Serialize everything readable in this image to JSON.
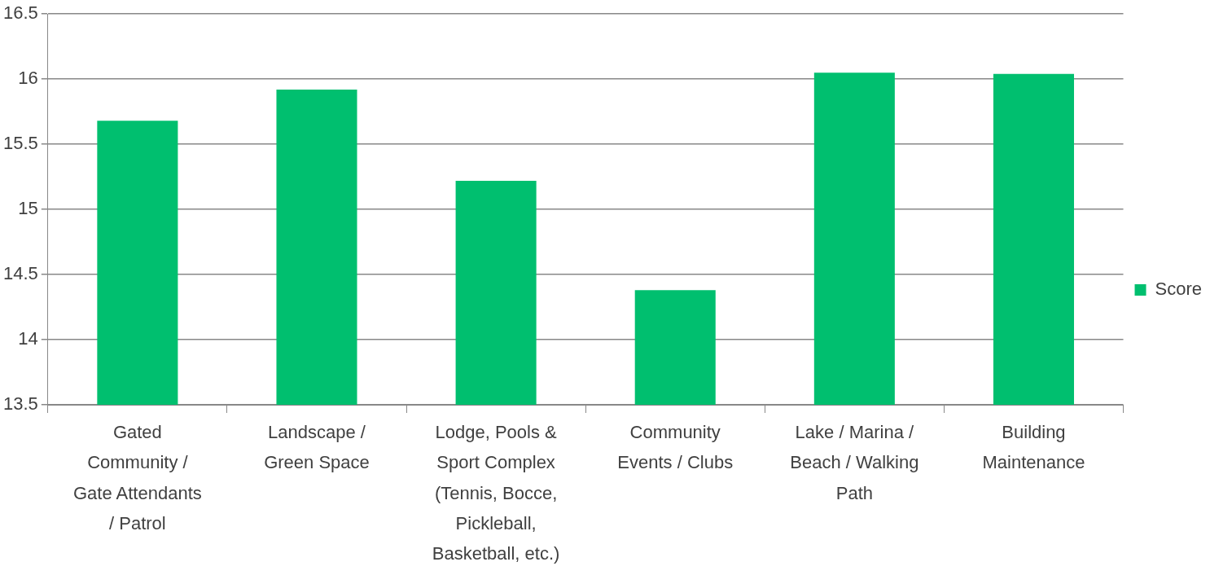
{
  "chart_data": {
    "type": "bar",
    "categories": [
      "Gated Community / Gate Attendants / Patrol",
      "Landscape / Green Space",
      "Lodge, Pools & Sport Complex (Tennis, Bocce, Pickleball, Basketball, etc.)",
      "Community Events / Clubs",
      "Lake / Marina / Beach / Walking Path",
      "Building Maintenance"
    ],
    "series": [
      {
        "name": "Score",
        "color": "#00bf6f",
        "values": [
          15.68,
          15.92,
          15.22,
          14.38,
          16.05,
          16.04
        ]
      }
    ],
    "ylim": [
      13.5,
      16.5
    ],
    "yticks": [
      13.5,
      14,
      14.5,
      15,
      15.5,
      16,
      16.5
    ],
    "grid": "y",
    "legend": "right"
  }
}
